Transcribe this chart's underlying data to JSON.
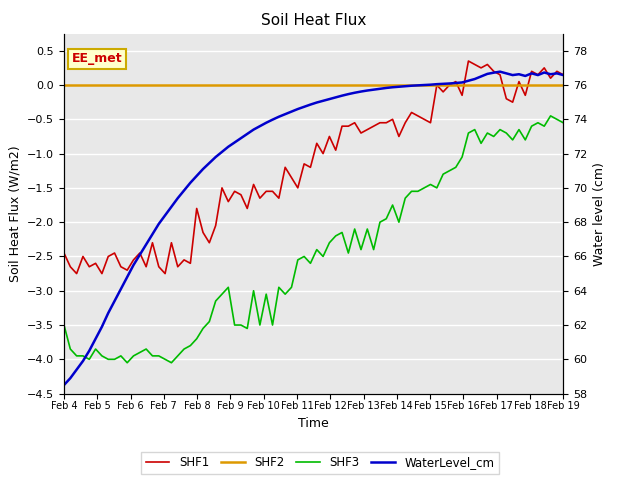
{
  "title": "Soil Heat Flux",
  "xlabel": "Time",
  "ylabel_left": "Soil Heat Flux (W/m2)",
  "ylabel_right": "Water level (cm)",
  "ylim_left": [
    -4.5,
    0.75
  ],
  "ylim_right": [
    58,
    79
  ],
  "yticks_left": [
    -4.5,
    -4.0,
    -3.5,
    -3.0,
    -2.5,
    -2.0,
    -1.5,
    -1.0,
    -0.5,
    0.0,
    0.5
  ],
  "yticks_right": [
    58,
    60,
    62,
    64,
    66,
    68,
    70,
    72,
    74,
    76,
    78
  ],
  "xtick_labels": [
    "Feb 4",
    "Feb 5",
    "Feb 6",
    "Feb 7",
    "Feb 8",
    "Feb 9",
    "Feb 10",
    "Feb 11",
    "Feb 12",
    "Feb 13",
    "Feb 14",
    "Feb 15",
    "Feb 16",
    "Feb 17",
    "Feb 18",
    "Feb 19"
  ],
  "background_color": "#e8e8e8",
  "grid_color": "#ffffff",
  "annotation_text": "EE_met",
  "annotation_bg": "#ffffcc",
  "annotation_border": "#ccaa00",
  "legend_entries": [
    "SHF1",
    "SHF2",
    "SHF3",
    "WaterLevel_cm"
  ],
  "line_colors": [
    "#cc0000",
    "#dd9900",
    "#00bb00",
    "#0000cc"
  ],
  "shf1": [
    -2.45,
    -2.65,
    -2.75,
    -2.5,
    -2.65,
    -2.6,
    -2.75,
    -2.5,
    -2.45,
    -2.65,
    -2.7,
    -2.55,
    -2.45,
    -2.65,
    -2.3,
    -2.65,
    -2.75,
    -2.3,
    -2.65,
    -2.55,
    -2.6,
    -1.8,
    -2.15,
    -2.3,
    -2.05,
    -1.5,
    -1.7,
    -1.55,
    -1.6,
    -1.8,
    -1.45,
    -1.65,
    -1.55,
    -1.55,
    -1.65,
    -1.2,
    -1.35,
    -1.5,
    -1.15,
    -1.2,
    -0.85,
    -1.0,
    -0.75,
    -0.95,
    -0.6,
    -0.6,
    -0.55,
    -0.7,
    -0.65,
    -0.6,
    -0.55,
    -0.55,
    -0.5,
    -0.75,
    -0.55,
    -0.4,
    -0.45,
    -0.5,
    -0.55,
    0.0,
    -0.1,
    0.0,
    0.05,
    -0.15,
    0.35,
    0.3,
    0.25,
    0.3,
    0.2,
    0.15,
    -0.2,
    -0.25,
    0.05,
    -0.15,
    0.2,
    0.15,
    0.25,
    0.1,
    0.2,
    0.15
  ],
  "shf2": [
    0.0,
    0.0,
    0.0,
    0.0,
    0.0,
    0.0,
    0.0,
    0.0,
    0.0,
    0.0,
    0.0,
    0.0,
    0.0,
    0.0,
    0.0,
    0.0,
    0.0,
    0.0,
    0.0,
    0.0,
    0.0,
    0.0,
    0.0,
    0.0,
    0.0,
    0.0,
    0.0,
    0.0,
    0.0,
    0.0,
    0.0,
    0.0,
    0.0,
    0.0,
    0.0,
    0.0,
    0.0,
    0.0,
    0.0,
    0.0,
    0.0,
    0.0,
    0.0,
    0.0,
    0.0,
    0.0,
    0.0,
    0.0,
    0.0,
    0.0,
    0.0,
    0.0,
    0.0,
    0.0,
    0.0,
    0.0,
    0.0,
    0.0,
    0.0,
    0.0,
    0.0,
    0.0,
    0.0,
    0.0,
    0.0,
    0.0,
    0.0,
    0.0,
    0.0,
    0.0,
    0.0,
    0.0,
    0.0,
    0.0,
    0.0,
    0.0,
    0.0,
    0.0,
    0.0,
    0.0
  ],
  "shf3": [
    -3.5,
    -3.85,
    -3.95,
    -3.95,
    -4.0,
    -3.85,
    -3.95,
    -4.0,
    -4.0,
    -3.95,
    -4.05,
    -3.95,
    -3.9,
    -3.85,
    -3.95,
    -3.95,
    -4.0,
    -4.05,
    -3.95,
    -3.85,
    -3.8,
    -3.7,
    -3.55,
    -3.45,
    -3.15,
    -3.05,
    -2.95,
    -3.5,
    -3.5,
    -3.55,
    -3.0,
    -3.5,
    -3.05,
    -3.5,
    -2.95,
    -3.05,
    -2.95,
    -2.55,
    -2.5,
    -2.6,
    -2.4,
    -2.5,
    -2.3,
    -2.2,
    -2.15,
    -2.45,
    -2.1,
    -2.4,
    -2.1,
    -2.4,
    -2.0,
    -1.95,
    -1.75,
    -2.0,
    -1.65,
    -1.55,
    -1.55,
    -1.5,
    -1.45,
    -1.5,
    -1.3,
    -1.25,
    -1.2,
    -1.05,
    -0.7,
    -0.65,
    -0.85,
    -0.7,
    -0.75,
    -0.65,
    -0.7,
    -0.8,
    -0.65,
    -0.8,
    -0.6,
    -0.55,
    -0.6,
    -0.45,
    -0.5,
    -0.55
  ],
  "water_level": [
    58.5,
    58.9,
    59.4,
    59.9,
    60.5,
    61.2,
    61.9,
    62.7,
    63.4,
    64.1,
    64.8,
    65.5,
    66.1,
    66.7,
    67.3,
    67.9,
    68.4,
    68.9,
    69.4,
    69.85,
    70.3,
    70.7,
    71.1,
    71.45,
    71.8,
    72.1,
    72.4,
    72.65,
    72.9,
    73.15,
    73.4,
    73.6,
    73.8,
    73.98,
    74.15,
    74.3,
    74.45,
    74.6,
    74.73,
    74.86,
    74.98,
    75.08,
    75.18,
    75.28,
    75.38,
    75.47,
    75.55,
    75.62,
    75.68,
    75.73,
    75.78,
    75.83,
    75.87,
    75.9,
    75.93,
    75.96,
    75.98,
    76.0,
    76.02,
    76.05,
    76.07,
    76.09,
    76.12,
    76.15,
    76.25,
    76.35,
    76.5,
    76.65,
    76.72,
    76.78,
    76.68,
    76.58,
    76.63,
    76.53,
    76.68,
    76.58,
    76.73,
    76.63,
    76.68,
    76.58
  ],
  "figsize": [
    6.4,
    4.8
  ],
  "dpi": 100
}
